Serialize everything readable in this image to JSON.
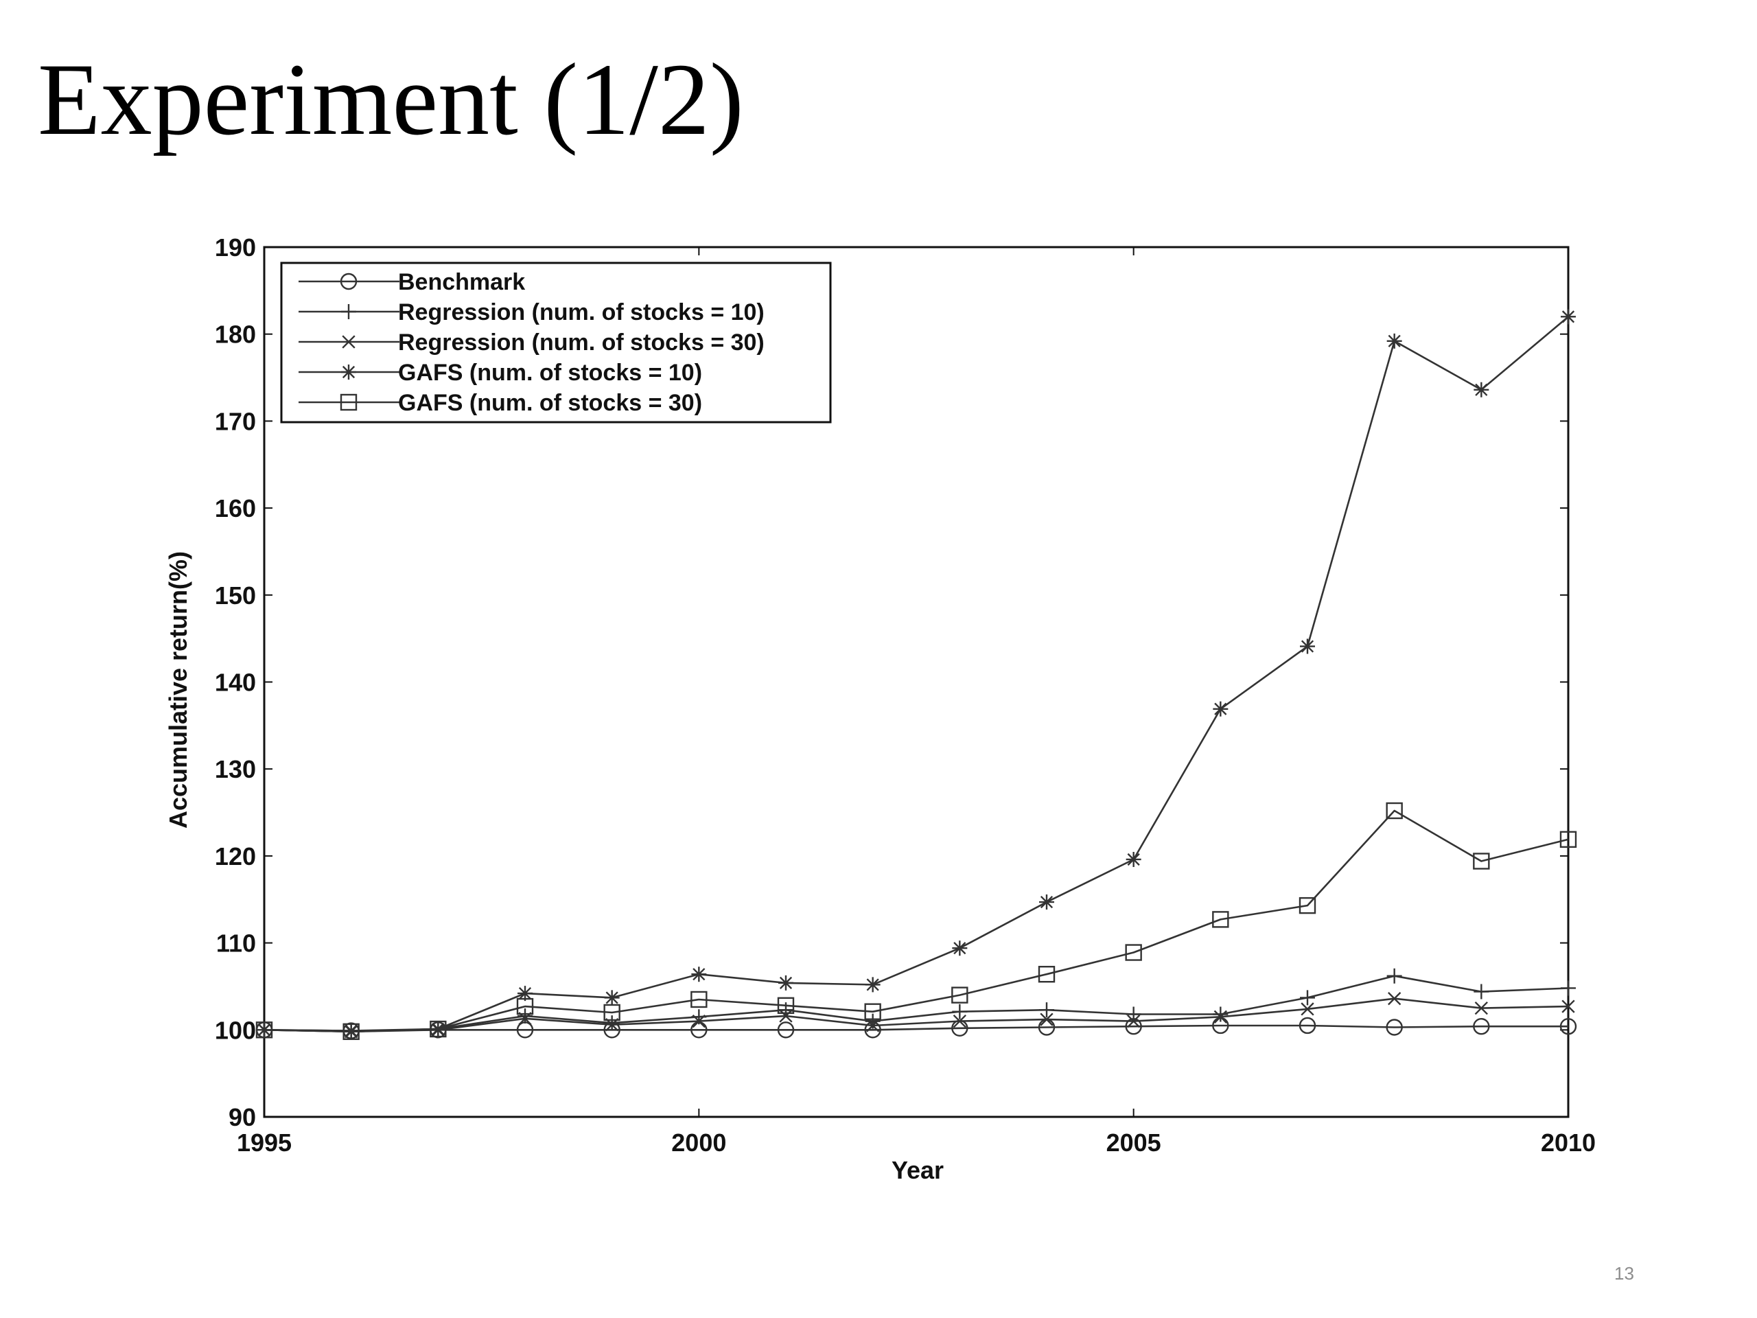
{
  "slide": {
    "title": "Experiment (1/2)",
    "page_number": "13"
  },
  "chart_data": {
    "type": "line",
    "xlabel": "Year",
    "ylabel": "Accumulative return(%)",
    "xlim": [
      1995,
      2010
    ],
    "ylim": [
      90,
      190
    ],
    "xticks": [
      1995,
      2000,
      2005,
      2010
    ],
    "yticks": [
      90,
      100,
      110,
      120,
      130,
      140,
      150,
      160,
      170,
      180,
      190
    ],
    "grid": false,
    "legend_position": "top-left",
    "x": [
      1995,
      1996,
      1997,
      1998,
      1999,
      2000,
      2001,
      2002,
      2003,
      2004,
      2005,
      2006,
      2007,
      2008,
      2009,
      2010
    ],
    "series": [
      {
        "name": "Benchmark",
        "marker": "circle",
        "color": "#333333",
        "values": [
          100,
          99.9,
          100,
          100,
          100,
          100,
          100,
          100,
          100.2,
          100.3,
          100.4,
          100.5,
          100.5,
          100.3,
          100.4,
          100.4
        ]
      },
      {
        "name": "Regression (num. of stocks = 10)",
        "marker": "plus",
        "color": "#333333",
        "values": [
          100,
          99.8,
          100.1,
          101.6,
          100.8,
          101.5,
          102.3,
          101.0,
          102.1,
          102.3,
          101.8,
          101.8,
          103.7,
          106.2,
          104.4,
          104.8
        ]
      },
      {
        "name": "Regression (num. of stocks = 30)",
        "marker": "x",
        "color": "#333333",
        "values": [
          100,
          99.8,
          100.0,
          101.3,
          100.6,
          101.0,
          101.6,
          100.5,
          101.0,
          101.2,
          101.0,
          101.5,
          102.4,
          103.6,
          102.5,
          102.7
        ]
      },
      {
        "name": "GAFS (num. of stocks = 10)",
        "marker": "asterisk",
        "color": "#333333",
        "values": [
          100,
          99.9,
          100.1,
          104.2,
          103.7,
          106.4,
          105.4,
          105.2,
          109.4,
          114.7,
          119.6,
          136.9,
          144.1,
          179.2,
          173.6,
          182.0
        ]
      },
      {
        "name": "GAFS (num. of stocks = 30)",
        "marker": "square",
        "color": "#333333",
        "values": [
          100,
          99.8,
          100.1,
          102.7,
          102.0,
          103.5,
          102.8,
          102.1,
          104.0,
          106.4,
          108.9,
          112.7,
          114.3,
          125.2,
          119.4,
          121.9
        ]
      }
    ]
  }
}
